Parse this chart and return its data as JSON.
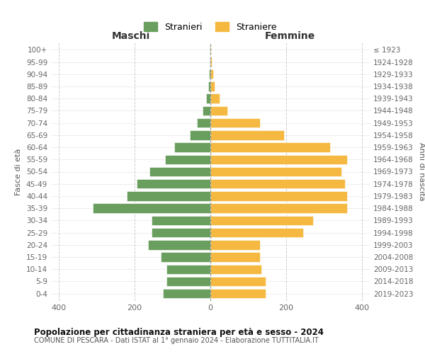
{
  "age_groups": [
    "0-4",
    "5-9",
    "10-14",
    "15-19",
    "20-24",
    "25-29",
    "30-34",
    "35-39",
    "40-44",
    "45-49",
    "50-54",
    "55-59",
    "60-64",
    "65-69",
    "70-74",
    "75-79",
    "80-84",
    "85-89",
    "90-94",
    "95-99",
    "100+"
  ],
  "birth_years": [
    "2019-2023",
    "2014-2018",
    "2009-2013",
    "2004-2008",
    "1999-2003",
    "1994-1998",
    "1989-1993",
    "1984-1988",
    "1979-1983",
    "1974-1978",
    "1969-1973",
    "1964-1968",
    "1959-1963",
    "1954-1958",
    "1949-1953",
    "1944-1948",
    "1939-1943",
    "1934-1938",
    "1929-1933",
    "1924-1928",
    "≤ 1923"
  ],
  "maschi": [
    125,
    115,
    115,
    130,
    165,
    155,
    155,
    310,
    220,
    195,
    160,
    120,
    95,
    55,
    35,
    20,
    12,
    6,
    4,
    2,
    2
  ],
  "femmine": [
    145,
    145,
    135,
    130,
    130,
    245,
    270,
    360,
    360,
    355,
    345,
    360,
    315,
    195,
    130,
    45,
    25,
    12,
    8,
    3,
    2
  ],
  "color_maschi": "#6a9e5e",
  "color_femmine": "#f5b942",
  "background_color": "#ffffff",
  "grid_color": "#cccccc",
  "title_main": "Popolazione per cittadinanza straniera per età e sesso - 2024",
  "subtitle": "COMUNE DI PESCARA - Dati ISTAT al 1° gennaio 2024 - Elaborazione TUTTITALIA.IT",
  "label_maschi": "Maschi",
  "label_femmine": "Femmine",
  "ylabel_left": "Fasce di età",
  "ylabel_right": "Anni di nascita",
  "legend_maschi": "Stranieri",
  "legend_femmine": "Straniere",
  "xlim": 420,
  "xticks": [
    -400,
    -200,
    0,
    200,
    400
  ],
  "xtick_labels": [
    "400",
    "200",
    "0",
    "200",
    "400"
  ]
}
